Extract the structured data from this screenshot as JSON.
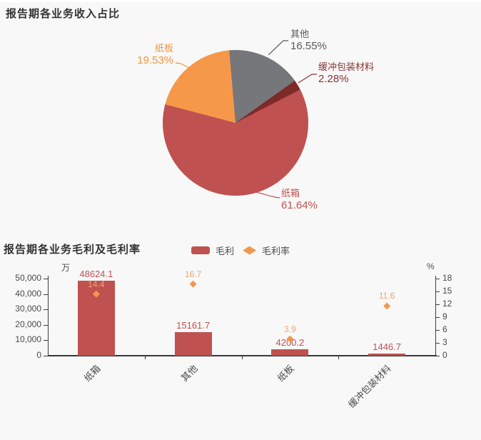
{
  "page": {
    "background": "#f8f8f8"
  },
  "pie_section": {
    "title": "报告期各业务收入占比"
  },
  "bar_section": {
    "title": "报告期各业务毛利及毛利率",
    "legend": [
      {
        "label": "毛利",
        "shape": "bar",
        "color": "#bf5150"
      },
      {
        "label": "毛利率",
        "shape": "diamond",
        "color": "#f0994e"
      }
    ],
    "left_axis_unit": "万",
    "right_axis_unit": "%"
  },
  "chart_data": [
    {
      "type": "pie",
      "title": "报告期各业务收入占比",
      "start_angle_deg": -5,
      "clockwise": true,
      "slices": [
        {
          "label": "其他",
          "value": 16.55,
          "display": "16.55%",
          "color": "#76777b",
          "label_color": "#595959"
        },
        {
          "label": "缓冲包装材料",
          "value": 2.28,
          "display": "2.28%",
          "color": "#7e2a28",
          "label_color": "#8a3533"
        },
        {
          "label": "纸箱",
          "value": 61.64,
          "display": "61.64%",
          "color": "#bf5150",
          "label_color": "#c05150"
        },
        {
          "label": "纸板",
          "value": 19.53,
          "display": "19.53%",
          "color": "#f6984a",
          "label_color": "#f0953f"
        }
      ]
    },
    {
      "type": "bar",
      "title": "报告期各业务毛利及毛利率",
      "categories": [
        "纸箱",
        "其他",
        "纸板",
        "缓冲包装材料"
      ],
      "series": [
        {
          "name": "毛利",
          "type": "bar",
          "axis": "left",
          "unit": "万",
          "color": "#bf5150",
          "label_color": "#c05150",
          "values": [
            48624.1,
            15161.7,
            4200.2,
            1446.7
          ]
        },
        {
          "name": "毛利率",
          "type": "scatter-diamond",
          "axis": "right",
          "unit": "%",
          "color": "#f0994e",
          "label_color": "#f2a36c",
          "values": [
            14.4,
            16.7,
            3.9,
            11.6
          ]
        }
      ],
      "left_axis": {
        "unit": "万",
        "min": 0,
        "max": 50000,
        "step": 10000,
        "tick_labels": [
          "0",
          "10,000",
          "20,000",
          "30,000",
          "40,000",
          "50,000"
        ]
      },
      "right_axis": {
        "unit": "%",
        "min": 0,
        "max": 18,
        "step": 3,
        "tick_labels": [
          "0",
          "3",
          "6",
          "9",
          "12",
          "15",
          "18"
        ]
      },
      "legend_position": "top-center",
      "grid": false
    }
  ]
}
